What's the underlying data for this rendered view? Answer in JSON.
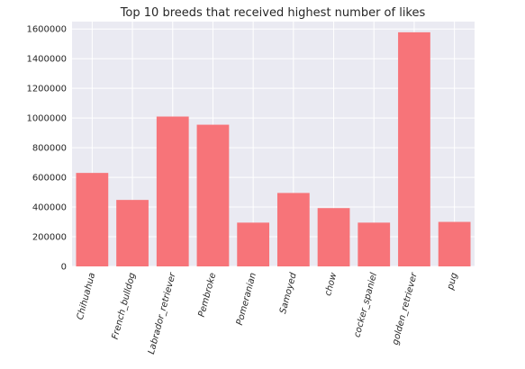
{
  "chart_data": {
    "type": "bar",
    "title": "Top 10 breeds that received highest number of likes",
    "xlabel": "",
    "ylabel": "",
    "categories": [
      "Chihuahua",
      "French_bulldog",
      "Labrador_retriever",
      "Pembroke",
      "Pomeranian",
      "Samoyed",
      "chow",
      "cocker_spaniel",
      "golden_retriever",
      "pug"
    ],
    "values": [
      630000,
      448000,
      1010000,
      955000,
      295000,
      495000,
      393000,
      295000,
      1578000,
      300000
    ],
    "ylim": [
      0,
      1650000
    ],
    "yticks": [
      0,
      200000,
      400000,
      600000,
      800000,
      1000000,
      1200000,
      1400000,
      1600000
    ],
    "ytick_labels": [
      "0",
      "200000",
      "400000",
      "600000",
      "800000",
      "1000000",
      "1200000",
      "1400000",
      "1600000"
    ],
    "grid": true,
    "bar_color": "#f77479",
    "background_color": "#eaeaf2",
    "grid_color": "#ffffff",
    "text_color": "#262626"
  }
}
